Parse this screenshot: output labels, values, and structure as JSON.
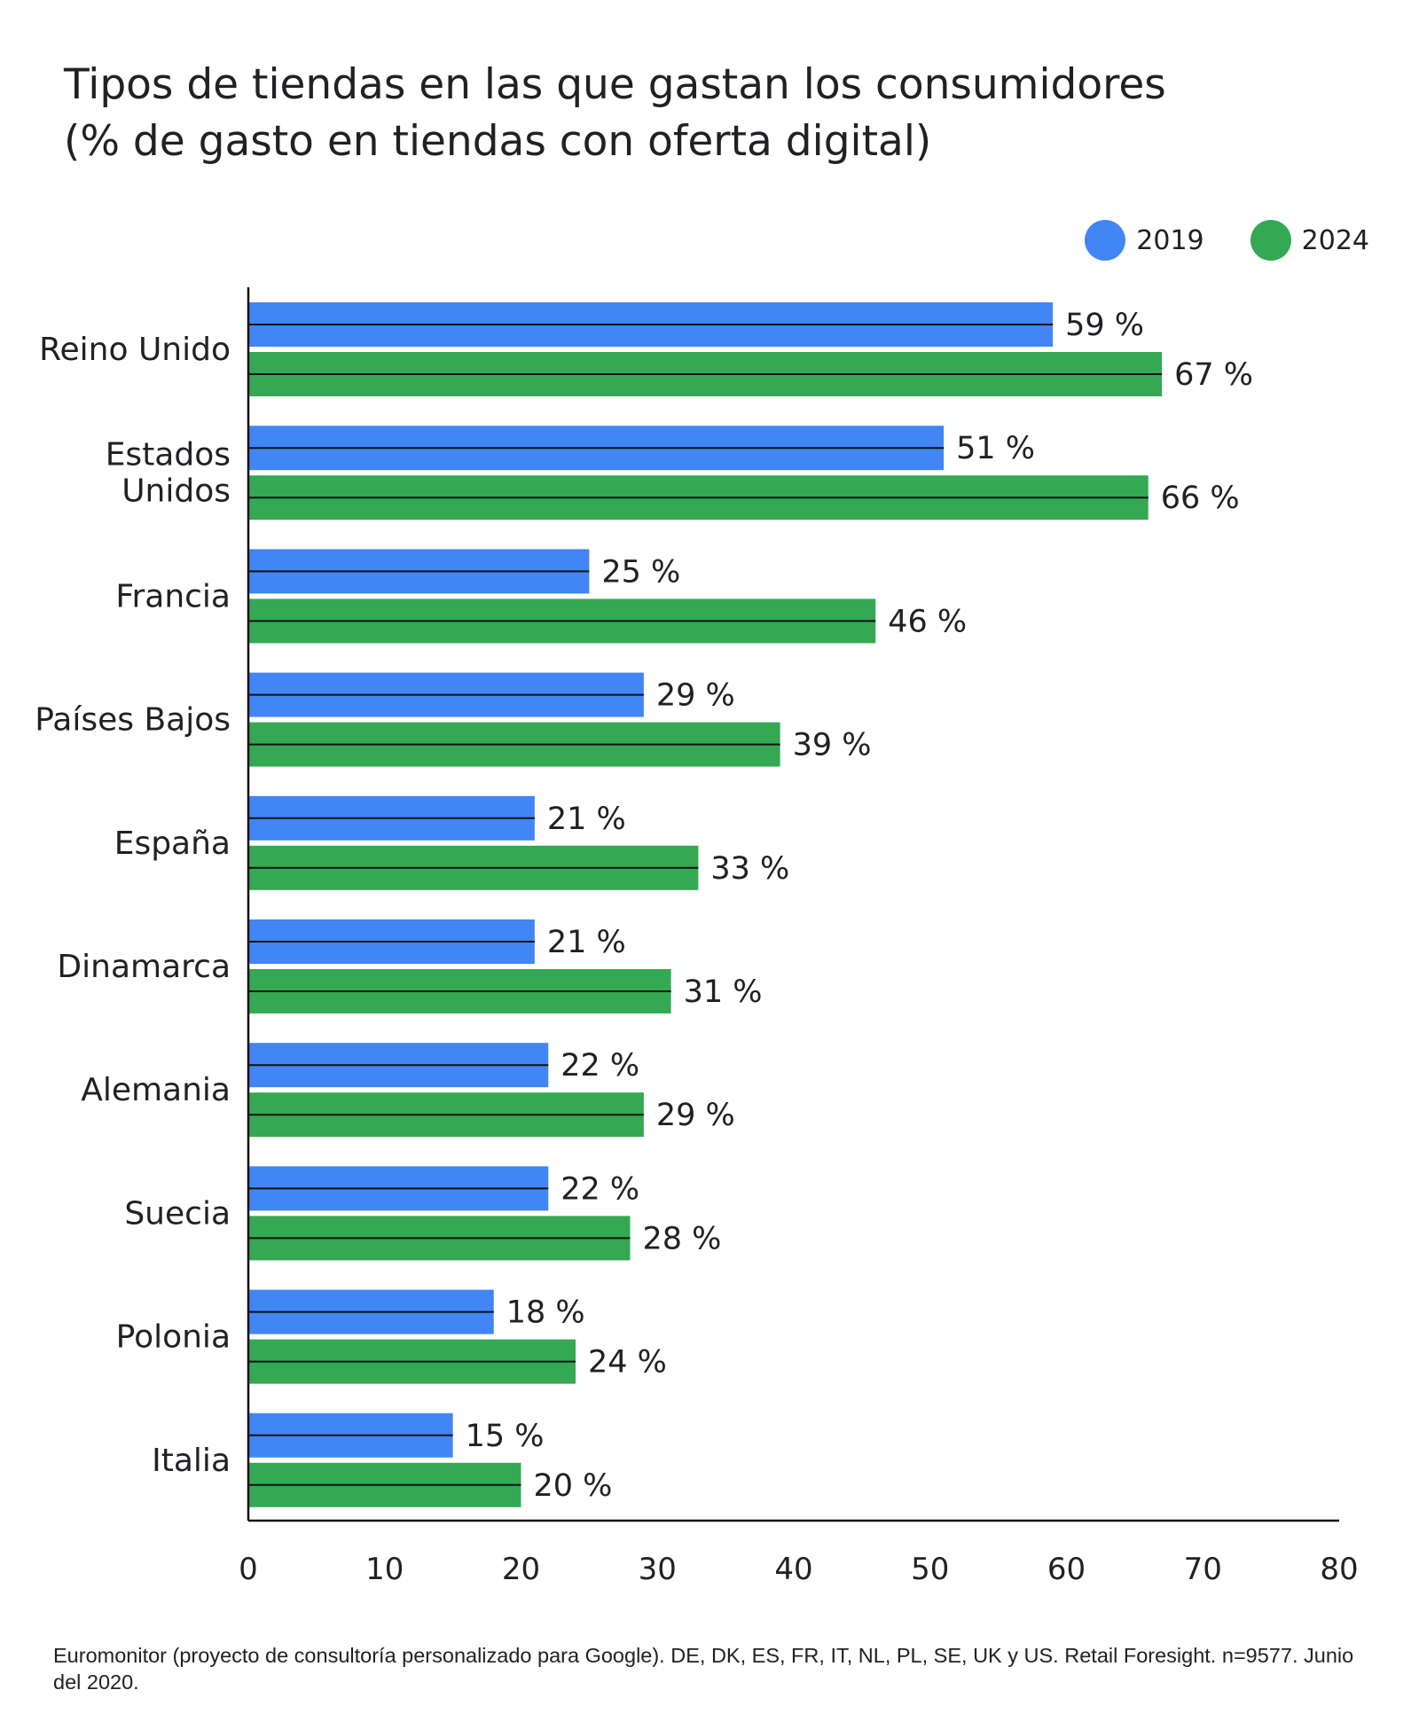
{
  "chart_data": {
    "type": "bar",
    "orientation": "horizontal",
    "title_lines": [
      "Tipos de tiendas en las que gastan los consumidores",
      "(% de gasto en tiendas con oferta digital)"
    ],
    "categories": [
      [
        "Reino Unido"
      ],
      [
        "Estados",
        "Unidos"
      ],
      [
        "Francia"
      ],
      [
        "Países Bajos"
      ],
      [
        "España"
      ],
      [
        "Dinamarca"
      ],
      [
        "Alemania"
      ],
      [
        "Suecia"
      ],
      [
        "Polonia"
      ],
      [
        "Italia"
      ]
    ],
    "series": [
      {
        "name": "2019",
        "color": "#4285f4",
        "values": [
          59,
          51,
          25,
          29,
          21,
          21,
          22,
          22,
          18,
          15
        ],
        "labels": [
          "59 %",
          "51 %",
          "25 %",
          "29 %",
          "21 %",
          "21 %",
          "22 %",
          "22 %",
          "18 %",
          "15 %"
        ]
      },
      {
        "name": "2024",
        "color": "#34a853",
        "values": [
          67,
          66,
          46,
          39,
          33,
          31,
          29,
          28,
          24,
          20
        ],
        "labels": [
          "67 %",
          "66 %",
          "46 %",
          "39 %",
          "33 %",
          "31 %",
          "29 %",
          "28 %",
          "24 %",
          "20 %"
        ]
      }
    ],
    "xlim": [
      0,
      80
    ],
    "xticks": [
      "0",
      "10",
      "20",
      "30",
      "40",
      "50",
      "60",
      "70",
      "80"
    ],
    "legend_position": "top-right",
    "grid": false
  },
  "source": "Euromonitor (proyecto de consultoría personalizado para Google). DE, DK, ES, FR, IT, NL, PL, SE, UK y US. Retail Foresight. n=9577. Junio del 2020."
}
